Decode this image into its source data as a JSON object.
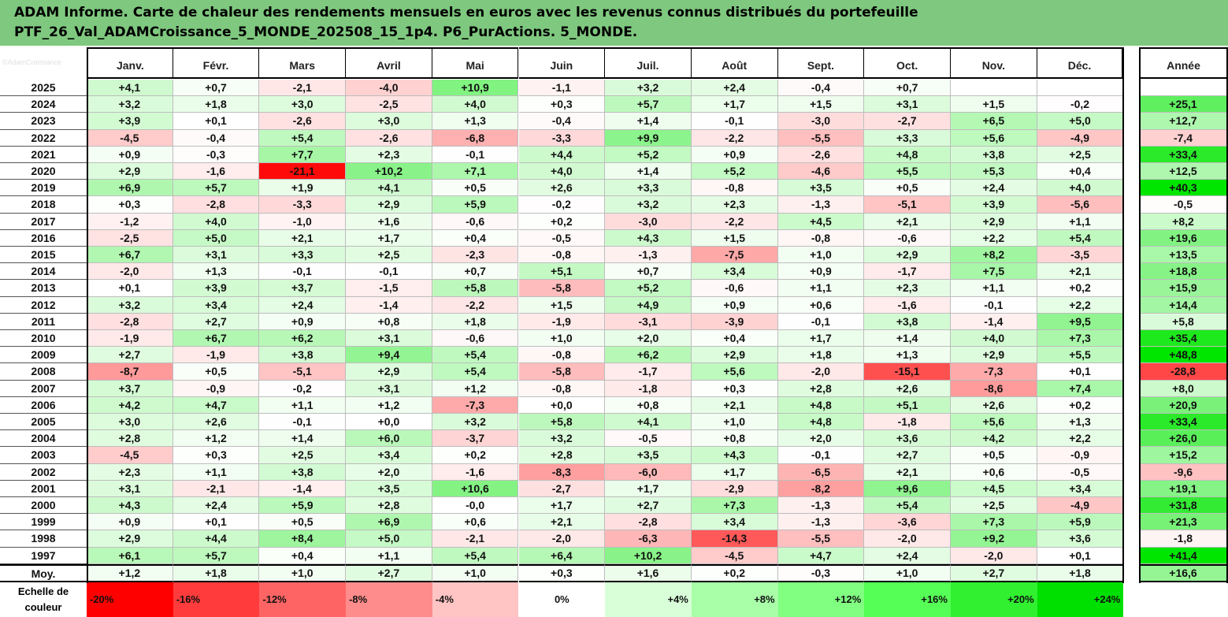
{
  "title": {
    "line1": "ADAM Informe. Carte de chaleur des rendements mensuels en euros avec les revenus connus distribués du portefeuille",
    "line2": "PTF_26_Val_ADAMCroissance_5_MONDE_202508_15_1p4. P6_PurActions. 5_MONDE."
  },
  "watermark": "©AdamCroissance",
  "chart_data": {
    "type": "heatmap",
    "columns": [
      "Janv.",
      "Févr.",
      "Mars",
      "Avril",
      "Mai",
      "Juin",
      "Juil.",
      "Août",
      "Sept.",
      "Oct.",
      "Nov.",
      "Déc."
    ],
    "annual_column": "Année",
    "rows": [
      {
        "year": "2025",
        "values": [
          "+4,1",
          "+0,7",
          "-2,1",
          "-4,0",
          "+10,9",
          "-1,1",
          "+3,2",
          "+2,4",
          "-0,4",
          "+0,7",
          "",
          ""
        ],
        "annual": ""
      },
      {
        "year": "2024",
        "values": [
          "+3,2",
          "+1,8",
          "+3,0",
          "-2,5",
          "+4,0",
          "+0,3",
          "+5,7",
          "+1,7",
          "+1,5",
          "+3,1",
          "+1,5",
          "-0,2"
        ],
        "annual": "+25,1"
      },
      {
        "year": "2023",
        "values": [
          "+3,9",
          "+0,1",
          "-2,6",
          "+3,0",
          "+1,3",
          "-0,4",
          "+1,4",
          "-0,1",
          "-3,0",
          "-2,7",
          "+6,5",
          "+5,0"
        ],
        "annual": "+12,7"
      },
      {
        "year": "2022",
        "values": [
          "-4,5",
          "-0,4",
          "+5,4",
          "-2,6",
          "-6,8",
          "-3,3",
          "+9,9",
          "-2,2",
          "-5,5",
          "+3,3",
          "+5,6",
          "-4,9"
        ],
        "annual": "-7,4"
      },
      {
        "year": "2021",
        "values": [
          "+0,9",
          "-0,3",
          "+7,7",
          "+2,3",
          "-0,1",
          "+4,4",
          "+5,2",
          "+0,9",
          "-2,6",
          "+4,8",
          "+3,8",
          "+2,5"
        ],
        "annual": "+33,4"
      },
      {
        "year": "2020",
        "values": [
          "+2,9",
          "-1,6",
          "-21,1",
          "+10,2",
          "+7,1",
          "+4,0",
          "+1,4",
          "+5,2",
          "-4,6",
          "+5,5",
          "+5,3",
          "+0,4"
        ],
        "annual": "+12,5"
      },
      {
        "year": "2019",
        "values": [
          "+6,9",
          "+5,7",
          "+1,9",
          "+4,1",
          "+0,5",
          "+2,6",
          "+3,3",
          "-0,8",
          "+3,5",
          "+0,5",
          "+2,4",
          "+4,0"
        ],
        "annual": "+40,3"
      },
      {
        "year": "2018",
        "values": [
          "+0,3",
          "-2,8",
          "-3,3",
          "+2,9",
          "+5,9",
          "-0,2",
          "+3,2",
          "+2,3",
          "-1,3",
          "-5,1",
          "+3,9",
          "-5,6"
        ],
        "annual": "-0,5"
      },
      {
        "year": "2017",
        "values": [
          "-1,2",
          "+4,0",
          "-1,0",
          "+1,6",
          "-0,6",
          "+0,2",
          "-3,0",
          "-2,2",
          "+4,5",
          "+2,1",
          "+2,9",
          "+1,1"
        ],
        "annual": "+8,2"
      },
      {
        "year": "2016",
        "values": [
          "-2,5",
          "+5,0",
          "+2,1",
          "+1,7",
          "+0,4",
          "-0,5",
          "+4,3",
          "+1,5",
          "-0,8",
          "-0,6",
          "+2,2",
          "+5,4"
        ],
        "annual": "+19,6"
      },
      {
        "year": "2015",
        "values": [
          "+6,7",
          "+3,1",
          "+3,3",
          "+2,5",
          "-2,3",
          "-0,8",
          "-1,3",
          "-7,5",
          "+1,0",
          "+2,9",
          "+8,2",
          "-3,5"
        ],
        "annual": "+13,5"
      },
      {
        "year": "2014",
        "values": [
          "-2,0",
          "+1,3",
          "-0,1",
          "-0,1",
          "+0,7",
          "+5,1",
          "+0,7",
          "+3,4",
          "+0,9",
          "-1,7",
          "+7,5",
          "+2,1"
        ],
        "annual": "+18,8"
      },
      {
        "year": "2013",
        "values": [
          "+0,1",
          "+3,9",
          "+3,7",
          "-1,5",
          "+5,8",
          "-5,8",
          "+5,2",
          "-0,6",
          "+1,1",
          "+2,3",
          "+1,1",
          "+0,2"
        ],
        "annual": "+15,9"
      },
      {
        "year": "2012",
        "values": [
          "+3,2",
          "+3,4",
          "+2,4",
          "-1,4",
          "-2,2",
          "+1,5",
          "+4,9",
          "+0,9",
          "+0,6",
          "-1,6",
          "-0,1",
          "+2,2"
        ],
        "annual": "+14,4"
      },
      {
        "year": "2011",
        "values": [
          "-2,8",
          "+2,7",
          "+0,9",
          "+0,8",
          "+1,8",
          "-1,9",
          "-3,1",
          "-3,9",
          "-0,1",
          "+3,8",
          "-1,4",
          "+9,5"
        ],
        "annual": "+5,8"
      },
      {
        "year": "2010",
        "values": [
          "-1,9",
          "+6,7",
          "+6,2",
          "+3,1",
          "-0,6",
          "+1,0",
          "+2,0",
          "+0,4",
          "+1,7",
          "+1,4",
          "+4,0",
          "+7,3"
        ],
        "annual": "+35,4"
      },
      {
        "year": "2009",
        "values": [
          "+2,7",
          "-1,9",
          "+3,8",
          "+9,4",
          "+5,4",
          "-0,8",
          "+6,2",
          "+2,9",
          "+1,8",
          "+1,3",
          "+2,9",
          "+5,5"
        ],
        "annual": "+48,8"
      },
      {
        "year": "2008",
        "values": [
          "-8,7",
          "+0,5",
          "-5,1",
          "+2,9",
          "+5,4",
          "-5,8",
          "-1,7",
          "+5,6",
          "-2,0",
          "-15,1",
          "-7,3",
          "+0,1"
        ],
        "annual": "-28,8"
      },
      {
        "year": "2007",
        "values": [
          "+3,7",
          "-0,9",
          "-0,2",
          "+3,1",
          "+1,2",
          "-0,8",
          "-1,8",
          "+0,3",
          "+2,8",
          "+2,6",
          "-8,6",
          "+7,4"
        ],
        "annual": "+8,0"
      },
      {
        "year": "2006",
        "values": [
          "+4,2",
          "+4,7",
          "+1,1",
          "+1,2",
          "-7,3",
          "+0,0",
          "+0,8",
          "+2,1",
          "+4,8",
          "+5,1",
          "+2,6",
          "+0,2"
        ],
        "annual": "+20,9"
      },
      {
        "year": "2005",
        "values": [
          "+3,0",
          "+2,6",
          "-0,1",
          "+0,0",
          "+3,2",
          "+5,8",
          "+4,1",
          "+1,0",
          "+4,8",
          "-1,8",
          "+5,6",
          "+1,3"
        ],
        "annual": "+33,4"
      },
      {
        "year": "2004",
        "values": [
          "+2,8",
          "+1,2",
          "+1,4",
          "+6,0",
          "-3,7",
          "+3,2",
          "-0,5",
          "+0,8",
          "+2,0",
          "+3,6",
          "+4,2",
          "+2,2"
        ],
        "annual": "+26,0"
      },
      {
        "year": "2003",
        "values": [
          "-4,5",
          "+0,3",
          "+2,5",
          "+3,4",
          "+0,2",
          "+2,8",
          "+3,5",
          "+4,3",
          "-0,1",
          "+2,7",
          "+0,5",
          "-0,9"
        ],
        "annual": "+15,2"
      },
      {
        "year": "2002",
        "values": [
          "+2,3",
          "+1,1",
          "+3,8",
          "+2,0",
          "-1,6",
          "-8,3",
          "-6,0",
          "+1,7",
          "-6,5",
          "+2,1",
          "+0,6",
          "-0,5"
        ],
        "annual": "-9,6"
      },
      {
        "year": "2001",
        "values": [
          "+3,1",
          "-2,1",
          "-1,4",
          "+3,5",
          "+10,6",
          "-2,7",
          "+1,7",
          "-2,9",
          "-8,2",
          "+9,6",
          "+4,5",
          "+3,4"
        ],
        "annual": "+19,1"
      },
      {
        "year": "2000",
        "values": [
          "+4,3",
          "+2,4",
          "+5,9",
          "+2,8",
          "-0,0",
          "+1,7",
          "+2,7",
          "+7,3",
          "-1,3",
          "+5,4",
          "+2,5",
          "-4,9"
        ],
        "annual": "+31,8"
      },
      {
        "year": "1999",
        "values": [
          "+0,9",
          "+0,1",
          "+0,5",
          "+6,9",
          "+0,6",
          "+2,1",
          "-2,8",
          "+3,4",
          "-1,3",
          "-3,6",
          "+7,3",
          "+5,9"
        ],
        "annual": "+21,3"
      },
      {
        "year": "1998",
        "values": [
          "+2,9",
          "+4,4",
          "+8,4",
          "+5,0",
          "-2,1",
          "-2,0",
          "-6,3",
          "-14,3",
          "-5,5",
          "-2,0",
          "+9,2",
          "+3,6"
        ],
        "annual": "-1,8"
      },
      {
        "year": "1997",
        "values": [
          "+6,1",
          "+5,7",
          "+0,4",
          "+1,1",
          "+5,4",
          "+6,4",
          "+10,2",
          "-4,5",
          "+4,7",
          "+2,4",
          "-2,0",
          "+0,1"
        ],
        "annual": "+41,4"
      }
    ],
    "average": {
      "label": "Moy.",
      "values": [
        "+1,2",
        "+1,8",
        "+1,0",
        "+2,7",
        "+1,0",
        "+0,3",
        "+1,6",
        "+0,2",
        "-0,3",
        "+1,0",
        "+2,7",
        "+1,8"
      ],
      "annual": "+16,6"
    },
    "color_scale": {
      "label": "Echelle de couleur",
      "stops": [
        {
          "text": "-20%",
          "color": "#ff0000"
        },
        {
          "text": "-16%",
          "color": "#ff3b3b"
        },
        {
          "text": "-12%",
          "color": "#ff6464"
        },
        {
          "text": "-8%",
          "color": "#ff8c8c"
        },
        {
          "text": "-4%",
          "color": "#ffc4c4"
        },
        {
          "text": "0%",
          "color": "#ffffff"
        },
        {
          "text": "+4%",
          "color": "#d8ffd8"
        },
        {
          "text": "+8%",
          "color": "#a8ffa8"
        },
        {
          "text": "+12%",
          "color": "#80ff80"
        },
        {
          "text": "+16%",
          "color": "#55ff55"
        },
        {
          "text": "+20%",
          "color": "#30f030"
        },
        {
          "text": "+24%",
          "color": "#00e000"
        }
      ]
    }
  }
}
